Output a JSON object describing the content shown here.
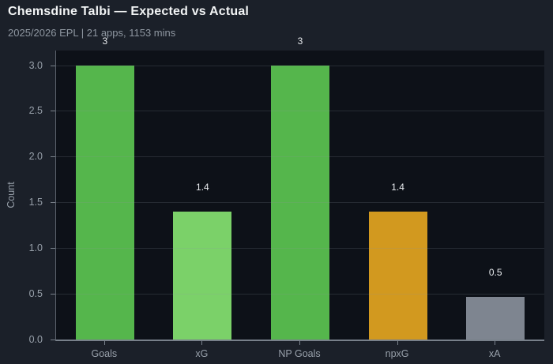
{
  "chart_data": {
    "type": "bar",
    "title": "Chemsdine Talbi — Expected vs Actual",
    "subtitle": "2025/2026 EPL | 21 apps, 1153 mins",
    "ylabel": "Count",
    "xlabel": "",
    "categories": [
      "Goals",
      "xG",
      "NP Goals",
      "npxG",
      "xA"
    ],
    "values": [
      3,
      1.4,
      3,
      1.4,
      0.47
    ],
    "value_labels": [
      "3",
      "1.4",
      "3",
      "1.4",
      "0.5"
    ],
    "bar_colors": [
      "#55b64c",
      "#7bd169",
      "#55b64c",
      "#d2991f",
      "#7e8590"
    ],
    "yticks": [
      0.0,
      0.5,
      1.0,
      1.5,
      2.0,
      2.5,
      3.0
    ],
    "ytick_labels": [
      "0.0",
      "0.5",
      "1.0",
      "1.5",
      "2.0",
      "2.5",
      "3.0"
    ],
    "ylim": [
      0,
      3.16
    ],
    "grid": "horizontal, drawn over bars",
    "legend": "none",
    "theme": {
      "page_background": "#1b2029",
      "plot_background": "#0d1118",
      "title_color": "#f2f4f5",
      "subtitle_color": "#8e96a0",
      "tick_label_color": "#98a0aa",
      "value_label_color": "#e9ecef",
      "gridline_color": "rgba(141,150,160,0.20)",
      "axis_color": "#78808a"
    }
  }
}
